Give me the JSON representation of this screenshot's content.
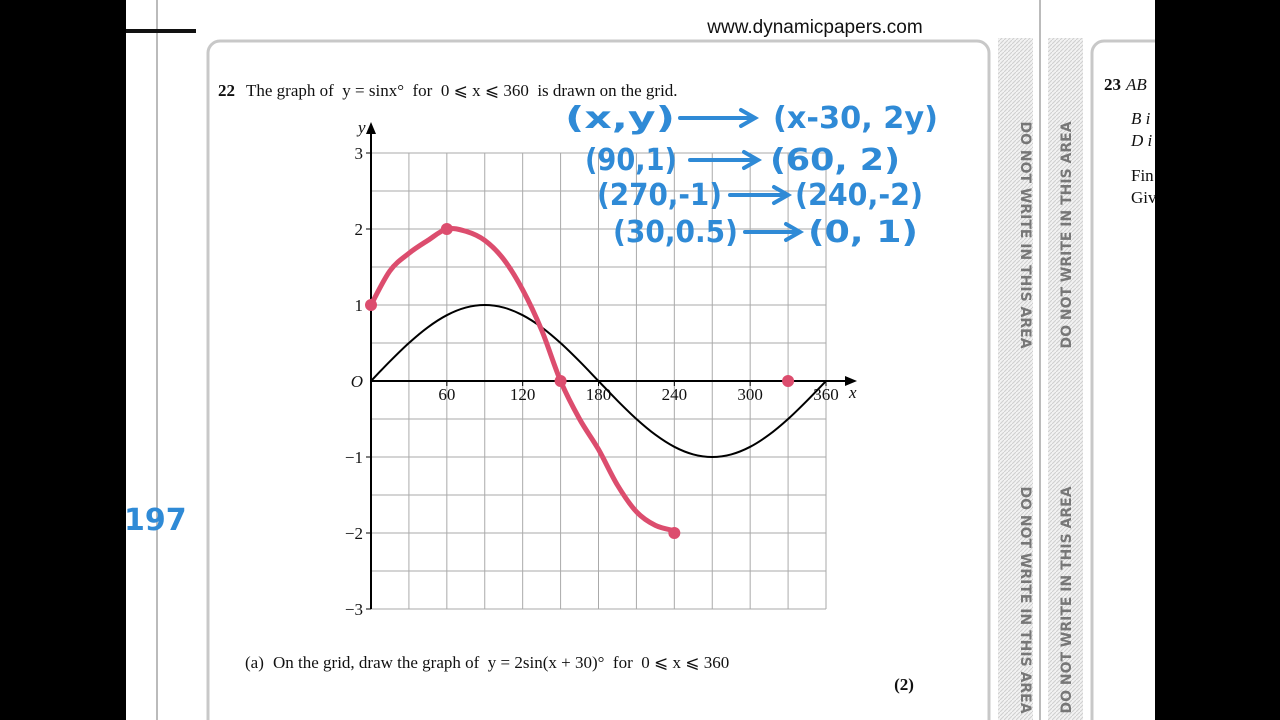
{
  "header": {
    "url": "www.dynamicpapers.com"
  },
  "question": {
    "number": "22",
    "text": "The graph of  y = sinx°  for  0 ⩽ x ⩽ 360  is drawn on the grid."
  },
  "chart_data": {
    "type": "line",
    "x": [
      0,
      15,
      30,
      45,
      60,
      75,
      90,
      105,
      120,
      135,
      150,
      165,
      180,
      195,
      210,
      225,
      240,
      255,
      270,
      285,
      300,
      315,
      330,
      345,
      360
    ],
    "series": [
      {
        "color": "#000000",
        "values": [
          0,
          0.259,
          0.5,
          0.707,
          0.866,
          0.966,
          1,
          0.966,
          0.866,
          0.707,
          0.5,
          0.259,
          0,
          -0.259,
          -0.5,
          -0.707,
          -0.866,
          -0.966,
          -1,
          -0.966,
          -0.866,
          -0.707,
          -0.5,
          -0.259,
          0
        ]
      },
      {
        "color": "#dc4d6e",
        "values": [
          1,
          1.45,
          1.68,
          1.85,
          2,
          1.97,
          1.85,
          1.6,
          1.2,
          0.67,
          0,
          -0.5,
          -0.9,
          -1.37,
          -1.72,
          -1.9,
          -1.97,
          null,
          null,
          null,
          null,
          null,
          null,
          null,
          null
        ]
      }
    ],
    "points": {
      "color": "#dc4d6e",
      "x": [
        0,
        60,
        150,
        240,
        330
      ],
      "y": [
        1,
        2,
        0,
        -2,
        0
      ]
    },
    "xlim": [
      0,
      360
    ],
    "ylim": [
      -3,
      3
    ],
    "xticks": [
      60,
      120,
      180,
      240,
      300,
      360
    ],
    "yticks": [
      {
        "value": -3,
        "label": "−3"
      },
      {
        "value": -2,
        "label": "−2"
      },
      {
        "value": -1,
        "label": "−1"
      },
      1,
      2,
      3
    ],
    "xgrid": [
      0,
      30,
      60,
      90,
      120,
      150,
      180,
      210,
      240,
      270,
      300,
      330,
      360
    ],
    "ygrid": [
      -3,
      -2.5,
      -2,
      -1.5,
      -1,
      -0.5,
      0,
      0.5,
      1,
      1.5,
      2,
      2.5,
      3
    ],
    "xlabel": "x",
    "ylabel": "y",
    "origin_label": "O",
    "grid": true
  },
  "handwriting": [
    {
      "from": "(x,y)",
      "to": "(x-30, 2y)"
    },
    {
      "from": "(90,1)",
      "to": "(60, 2)"
    },
    {
      "from": "(270,-1)",
      "to": "(240,-2)"
    },
    {
      "from": "(30,0.5)",
      "to": "(0, 1)"
    }
  ],
  "margin_note": "197",
  "part_a": {
    "label": "(a)",
    "text": "On the grid, draw the graph of  y = 2sin(x + 30)°  for  0 ⩽ x ⩽ 360",
    "marks": "(2)"
  },
  "sidebar": {
    "warning": "DO NOT WRITE IN THIS AREA"
  },
  "next_question": {
    "number": "23",
    "lines": [
      "AB",
      "B i",
      "D i",
      "Fin",
      "Giv"
    ]
  }
}
